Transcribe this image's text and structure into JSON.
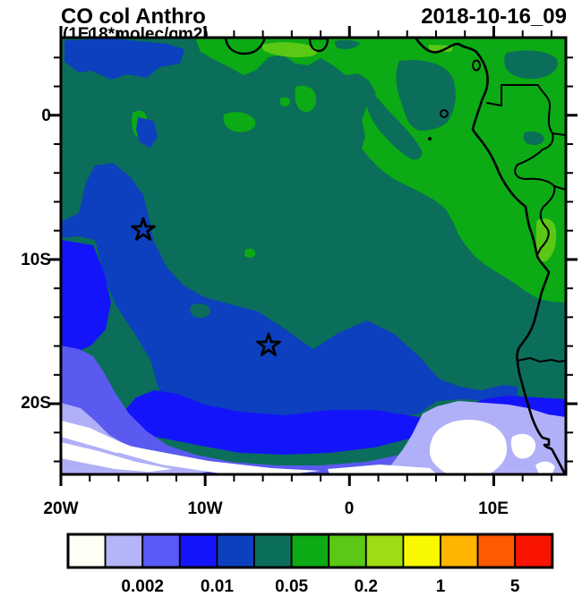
{
  "header": {
    "title": "CO col Anthro",
    "subtitle": "(1E18*molec/cm2)",
    "datetime": "2018-10-16_09"
  },
  "axes": {
    "y_labels": [
      "0",
      "10S",
      "20S"
    ],
    "x_labels": [
      "20W",
      "10W",
      "0",
      "10E"
    ]
  },
  "colorbar": {
    "labels": [
      "0.002",
      "0.01",
      "0.05",
      "0.2",
      "1",
      "5"
    ],
    "colors": [
      "#fffff6",
      "#b4b4f8",
      "#5a5af8",
      "#1414fa",
      "#0c40be",
      "#0b6e5a",
      "#0caa14",
      "#5ac814",
      "#a0dc14",
      "#f8f800",
      "#ffb400",
      "#ff5a00",
      "#f81400"
    ]
  },
  "palette": {
    "teal": "#0b6e5a",
    "green": "#0caa14",
    "light_green": "#5ac814",
    "dark_blue": "#0c40be",
    "blue": "#1414fa",
    "violet": "#5a5af0",
    "lavender": "#b0b0f8",
    "white": "#fffffe",
    "line": "#000000"
  },
  "icons": {
    "station_marker": "open-star"
  },
  "chart_data": {
    "type": "heatmap",
    "subtype": "filled-contour-geographic-map",
    "title": "CO col Anthro",
    "units": "1E18*molec/cm2",
    "timestamp": "2018-10-16_09",
    "region": "South Atlantic / West-Central Africa coast",
    "x_axis": {
      "tick_labels": [
        "20W",
        "10W",
        "0",
        "10E"
      ],
      "range_deg_lon": [
        -20,
        15.1
      ],
      "minor_step_deg": 2
    },
    "y_axis": {
      "tick_labels": [
        "0",
        "10S",
        "20S"
      ],
      "range_deg_lat": [
        5.4,
        -25.1
      ],
      "minor_step_deg": 2
    },
    "colorbar_tick_values": [
      0.002,
      0.01,
      0.05,
      0.2,
      1,
      5
    ],
    "n_color_levels": 13,
    "legend_position": "bottom",
    "grid": false,
    "star_markers_lat_lon": [
      [
        -8.0,
        -14.3
      ],
      [
        -16.1,
        -5.6
      ]
    ],
    "field_summary": "Low values (white/violet/blue < 0.01) over open ocean SW corner; mid values (0.01-0.05, blues/teal) over central ocean; higher values (0.05-0.2, greens) over African land in NE and along the Gulf of Guinea coast"
  }
}
